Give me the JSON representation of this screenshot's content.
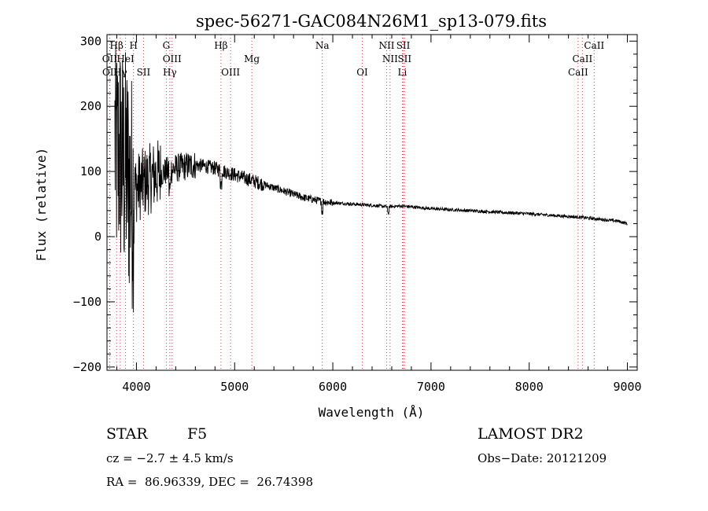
{
  "chart_data": {
    "type": "line",
    "title": "spec-56271-GAC084N26M1_sp13-079.fits",
    "xlabel": "Wavelength (Å)",
    "ylabel": "Flux (relative)",
    "xlim": [
      3700,
      9100
    ],
    "ylim": [
      -205,
      310
    ],
    "x_ticks": [
      4000,
      5000,
      6000,
      7000,
      8000,
      9000
    ],
    "x_tick_labels": [
      "4000",
      "5000",
      "6000",
      "7000",
      "8000",
      "9000"
    ],
    "y_ticks": [
      -200,
      -100,
      0,
      100,
      200,
      300
    ],
    "y_tick_labels": [
      "−200",
      "−100",
      "0",
      "100",
      "200",
      "300"
    ],
    "grid": false,
    "colors": {
      "line": "#000000",
      "marker": "#d04040",
      "axes": "#000000"
    },
    "spectrum_envelope": {
      "x": [
        3780,
        3800,
        3830,
        3860,
        3900,
        3950,
        4000,
        4100,
        4200,
        4300,
        4400,
        4500,
        4600,
        4700,
        4800,
        4900,
        5000,
        5100,
        5200,
        5300,
        5400,
        5500,
        5600,
        5700,
        5800,
        5890,
        5950,
        6000,
        6200,
        6400,
        6563,
        6700,
        7000,
        7500,
        8000,
        8500,
        8700,
        8900,
        9000
      ],
      "y": [
        150,
        120,
        130,
        110,
        100,
        70,
        75,
        85,
        95,
        100,
        105,
        108,
        110,
        108,
        105,
        100,
        95,
        90,
        85,
        80,
        75,
        70,
        65,
        60,
        57,
        54,
        53,
        52,
        50,
        48,
        46,
        47,
        43,
        39,
        35,
        30,
        27,
        24,
        20
      ]
    },
    "spectral_lines": [
      {
        "name": "Hβ",
        "row": 0,
        "wavelength": 3798
      },
      {
        "name": "H",
        "row": 0,
        "wavelength": 3970
      },
      {
        "name": "G",
        "row": 0,
        "wavelength": 4304
      },
      {
        "name": "Hβ",
        "row": 0,
        "wavelength": 4861
      },
      {
        "name": "Na",
        "row": 0,
        "wavelength": 5893
      },
      {
        "name": "NII",
        "row": 0,
        "wavelength": 6548
      },
      {
        "name": "SII",
        "row": 0,
        "wavelength": 6717
      },
      {
        "name": "CaII",
        "row": 0,
        "wavelength": 8662
      },
      {
        "name": "OII",
        "row": 1,
        "wavelength": 3727
      },
      {
        "name": "HeI",
        "row": 1,
        "wavelength": 3889
      },
      {
        "name": "OIII",
        "row": 1,
        "wavelength": 4363
      },
      {
        "name": "Mg",
        "row": 1,
        "wavelength": 5175
      },
      {
        "name": "NII",
        "row": 1,
        "wavelength": 6583
      },
      {
        "name": "SII",
        "row": 1,
        "wavelength": 6731
      },
      {
        "name": "CaII",
        "row": 1,
        "wavelength": 8542
      },
      {
        "name": "OII",
        "row": 2,
        "wavelength": 3729
      },
      {
        "name": "Hγ",
        "row": 2,
        "wavelength": 3835
      },
      {
        "name": "SII",
        "row": 2,
        "wavelength": 4072
      },
      {
        "name": "Hγ",
        "row": 2,
        "wavelength": 4340
      },
      {
        "name": "OIII",
        "row": 2,
        "wavelength": 4959
      },
      {
        "name": "OI",
        "row": 2,
        "wavelength": 6300
      },
      {
        "name": "Li",
        "row": 2,
        "wavelength": 6708
      },
      {
        "name": "CaII",
        "row": 2,
        "wavelength": 8498
      }
    ]
  },
  "info": {
    "class_label": "STAR",
    "subclass": "F5",
    "survey": "LAMOST DR2",
    "redshift": "cz = −2.7 ± 4.5 km/s",
    "obs_date": "Obs−Date: 20121209",
    "coords": "RA =  86.96339, DEC =  26.74398"
  }
}
